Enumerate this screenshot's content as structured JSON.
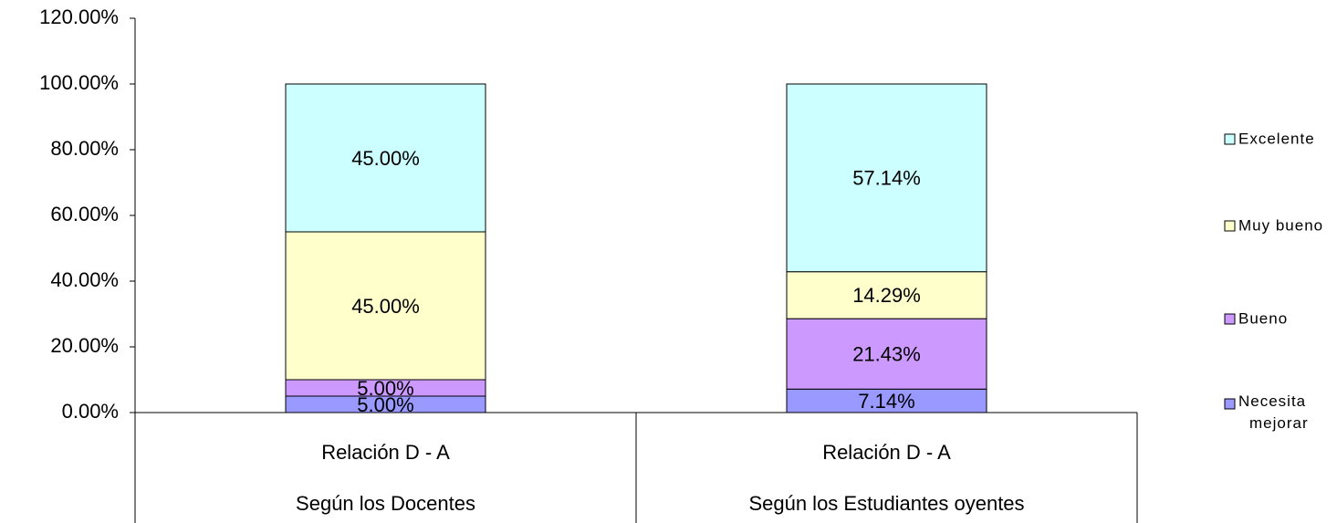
{
  "chart_data": {
    "type": "stacked_bar",
    "categories": [
      [
        "Relación D - A",
        "Según los Docentes"
      ],
      [
        "Relación D - A",
        "Según los Estudiantes oyentes"
      ]
    ],
    "series": [
      {
        "name": "Necesita mejorar",
        "color": "#9999ff",
        "values": [
          5,
          7.14
        ],
        "value_labels": [
          "5.00%",
          "7.14%"
        ]
      },
      {
        "name": "Bueno",
        "color": "#cc99ff",
        "values": [
          5,
          21.43
        ],
        "value_labels": [
          "5.00%",
          "21.43%"
        ]
      },
      {
        "name": "Muy bueno",
        "color": "#ffffcc",
        "values": [
          45,
          14.29
        ],
        "value_labels": [
          "45.00%",
          "14.29%"
        ]
      },
      {
        "name": "Excelente",
        "color": "#ccffff",
        "values": [
          45,
          57.14
        ],
        "value_labels": [
          "45.00%",
          "57.14%"
        ]
      }
    ],
    "ylim": [
      0,
      120
    ],
    "yticks": [
      {
        "value": 0,
        "label": "0.00%"
      },
      {
        "value": 20,
        "label": "20.00%"
      },
      {
        "value": 40,
        "label": "40.00%"
      },
      {
        "value": 60,
        "label": "60.00%"
      },
      {
        "value": 80,
        "label": "80.00%"
      },
      {
        "value": 100,
        "label": "100.00%"
      },
      {
        "value": 120,
        "label": "120.00%"
      }
    ],
    "legend": "right"
  }
}
